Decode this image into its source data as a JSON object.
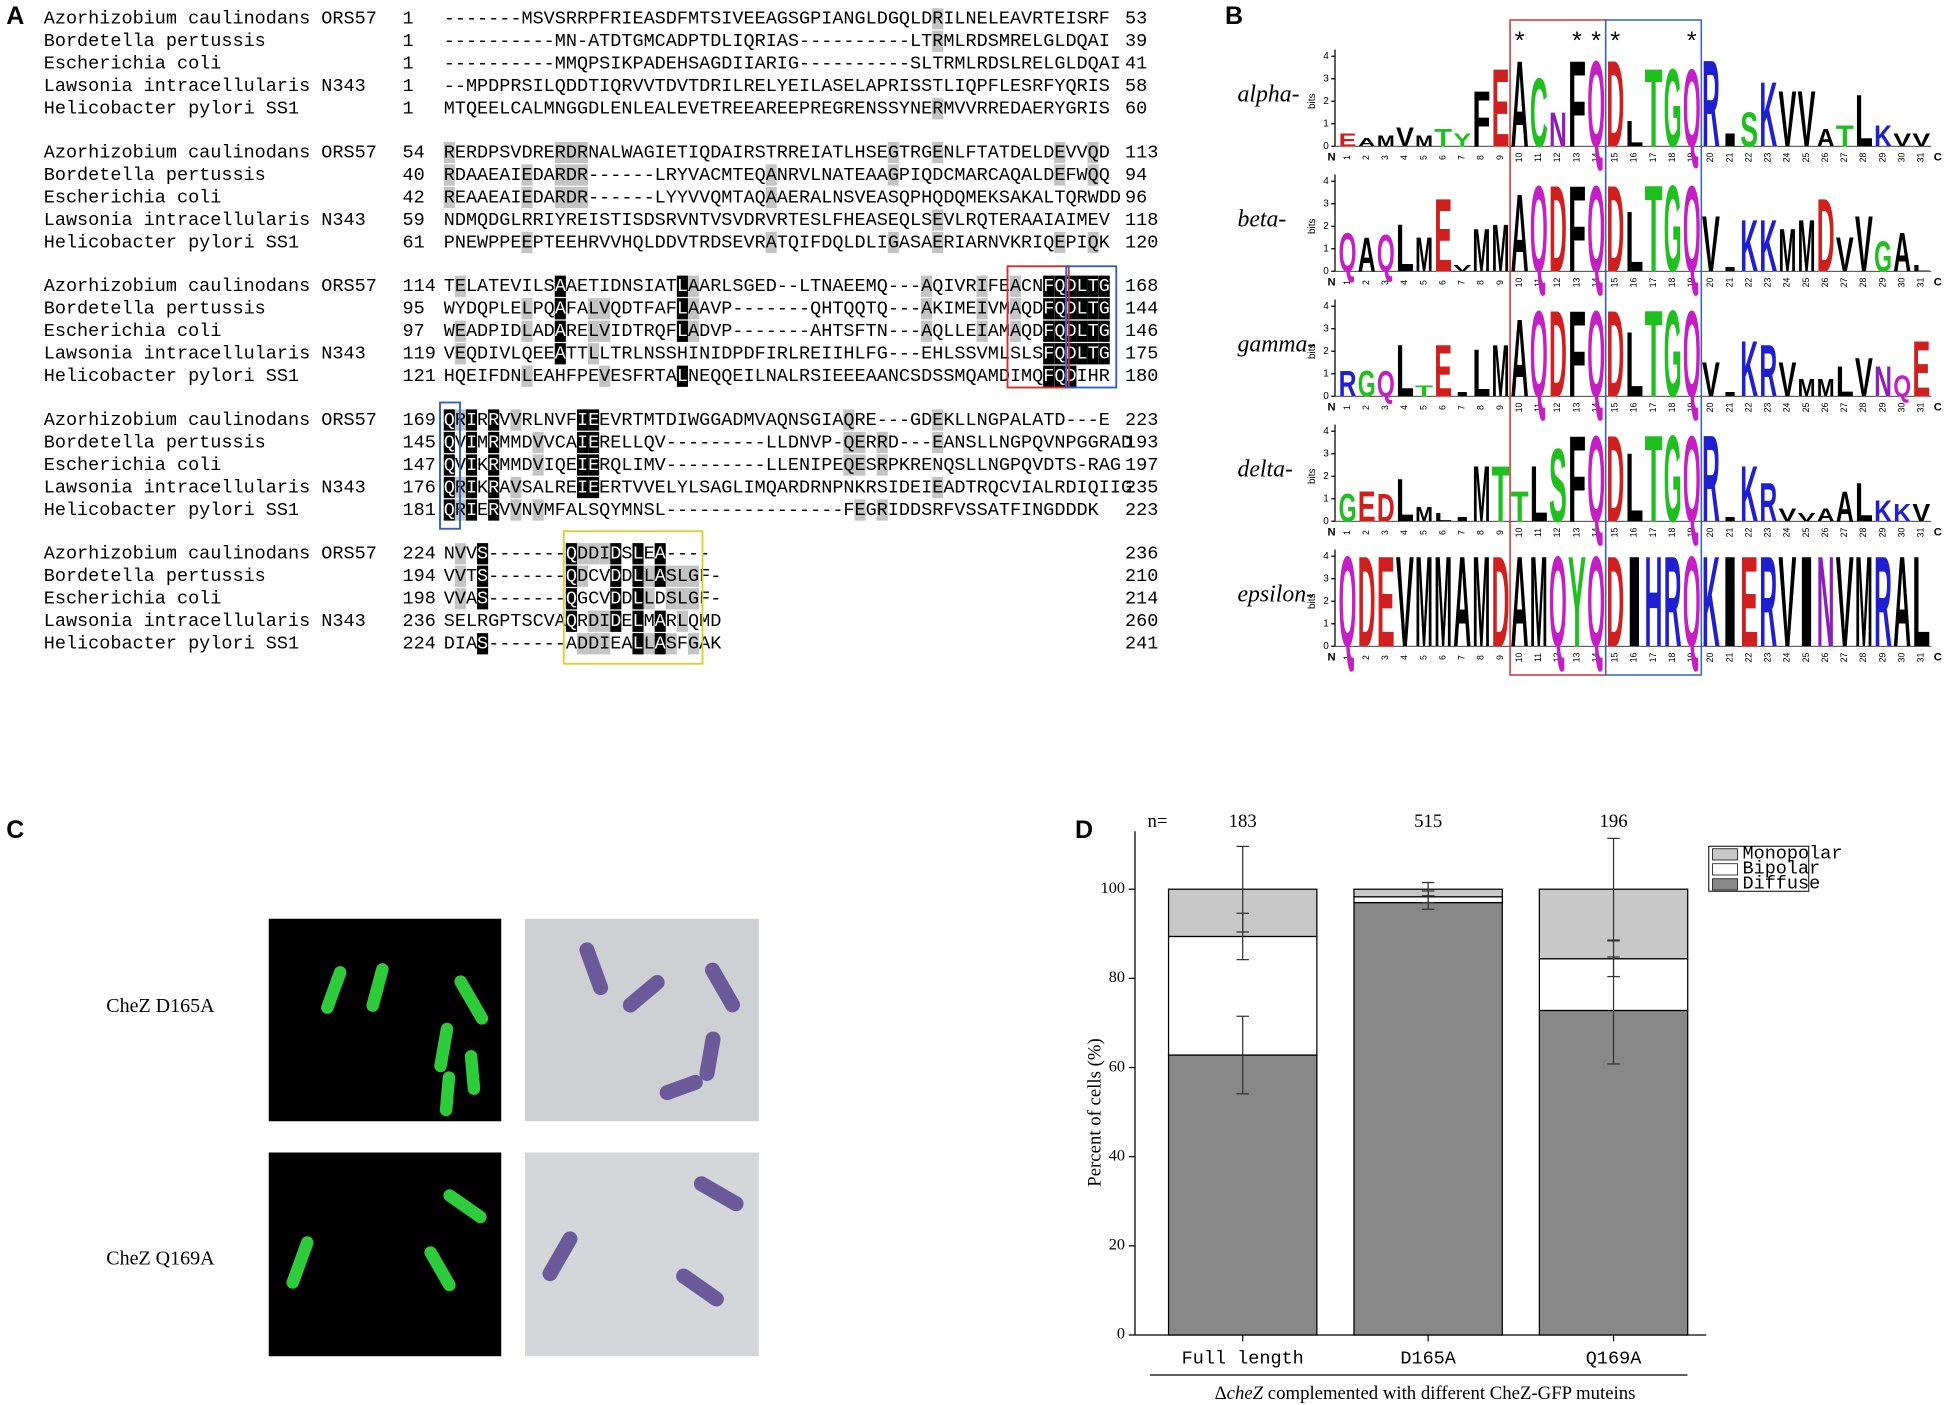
{
  "panels": {
    "a": "A",
    "b": "B",
    "c": "C",
    "d": "D"
  },
  "alignment": {
    "blocks": [
      {
        "rows": [
          {
            "name": "Azorhizobium caulinodans ORS57",
            "start": 1,
            "seq": "-------MSVSRRPFRIEASDFMTSIVEEAGSGPIANGLDGQLDRILNELEAVRTEISRF",
            "end": 53
          },
          {
            "name": "Bordetella pertussis",
            "start": 1,
            "seq": "----------MN-ATDTGMCADPTDLIQRIAS----------LTRMLRDSMRELGLDQAI",
            "end": 39
          },
          {
            "name": "Escherichia coli",
            "start": 1,
            "seq": "----------MMQPSIKPADEHSAGDIIARIG----------SLTRMLRDSLRELGLDQAI",
            "end": 41
          },
          {
            "name": "Lawsonia intracellularis N343",
            "start": 1,
            "seq": "--MPDPRSILQDDTIQRVVTDVTDRILRELYEILASELAPRISSTLIQPFLESRFYQRIS",
            "end": 58
          },
          {
            "name": "Helicobacter pylori SS1",
            "start": 1,
            "seq": "MTQEELCALMNGGDLENLEALEVETREEAREEPREGRENSSYNERMVVRREDAERYGRIS",
            "end": 60
          }
        ]
      },
      {
        "rows": [
          {
            "name": "Azorhizobium caulinodans ORS57",
            "start": 54,
            "seq": "RERDPSVDRERDRNALWAGIETIQDAIRSTRREIATLHSEGTRGENLFTATDELDEVVQD",
            "end": 113
          },
          {
            "name": "Bordetella pertussis",
            "start": 40,
            "seq": "RDAAEAIEDARDR------LRYVACMTEQANRVLNATEAAGPIQDCMARCAQALDEFWQQ",
            "end": 94
          },
          {
            "name": "Escherichia coli",
            "start": 42,
            "seq": "REAAEAIEDARDR------LYYVVQMTAQAAERALNSVEASQPHQDQMEKSAKALTQRWDD",
            "end": 96
          },
          {
            "name": "Lawsonia intracellularis N343",
            "start": 59,
            "seq": "NDMQDGLRRIYREISTISDSRVNTVSVDRVRTESLFHEASEQLSEVLRQTERAAIAIMEV",
            "end": 118
          },
          {
            "name": "Helicobacter pylori SS1",
            "start": 61,
            "seq": "PNEWPPEEPTEEHRVVHQLDDVTRDSEVRATQIFDQLDLIGASAERIARNVKRIQEPIQK",
            "end": 120
          }
        ]
      },
      {
        "rows": [
          {
            "name": "Azorhizobium caulinodans ORS57",
            "start": 114,
            "seq": "TELATEVILSAAETIDNSIATLAARLSGED--LTNAEEMQ---AQIVRIFEACNFQDLTG",
            "end": 168
          },
          {
            "name": "Bordetella pertussis",
            "start": 95,
            "seq": "WYDQPLELPQAFALVQDTFAFLAAVP-------QHTQQTQ---AKIMEIVMAQDFQDLTG",
            "end": 144
          },
          {
            "name": "Escherichia coli",
            "start": 97,
            "seq": "WEADPIDLADARELVIDTRQFLADVP-------AHTSFTN---AQLLEIAMAQDFQDLTG",
            "end": 146
          },
          {
            "name": "Lawsonia intracellularis N343",
            "start": 119,
            "seq": "VEQDIVLQEEATTLLTRLNSSHINIDPDFIRLREIIHLFG---EHLSSVMLSLSFQDLTG",
            "end": 175
          },
          {
            "name": "Helicobacter pylori SS1",
            "start": 121,
            "seq": "HQEIFDNLEAHFPEVESFRTALNEQQEILNALRSIEEEAANCSDSSMQAMDIMQFQDIHR",
            "end": 180
          }
        ]
      },
      {
        "rows": [
          {
            "name": "Azorhizobium caulinodans ORS57",
            "start": 169,
            "seq": "QRIRRVVRLNVFIEEVRTMTDIWGGADMVAQNSGIAQRE---GDEKLLNGPALATD---E",
            "end": 223
          },
          {
            "name": "Bordetella pertussis",
            "start": 145,
            "seq": "QVIMRMMDVVCAIERELLQV---------LLDNVP-QERRD---EANSLLNGPQVNPGGRAD",
            "end": 193
          },
          {
            "name": "Escherichia coli",
            "start": 147,
            "seq": "QVIKRMMDVIQEIERQLIMV---------LLENIPEQESRPKRENQSLLNGPQVDTS-RAG",
            "end": 197
          },
          {
            "name": "Lawsonia intracellularis N343",
            "start": 176,
            "seq": "QRIKRAVSALREIEERTVVELYLSAGLIMQARDRNPNKRSIDEIEADTRQCVIALRDIQIIG",
            "end": 235
          },
          {
            "name": "Helicobacter pylori SS1",
            "start": 181,
            "seq": "QRIERVVNVMFALSQYMNSL----------------FEGRIDDSRFVSSATFINGDDDK",
            "end": 223
          }
        ]
      },
      {
        "rows": [
          {
            "name": "Azorhizobium caulinodans ORS57",
            "start": 224,
            "seq": "NVVS-------QDDIDSLEA----",
            "end": 236
          },
          {
            "name": "Bordetella pertussis",
            "start": 194,
            "seq": "VVTS-------QDCVDDLLASLGF-",
            "end": 210
          },
          {
            "name": "Escherichia coli",
            "start": 198,
            "seq": "VVAS-------QGCVDDLLDSLGF-",
            "end": 214
          },
          {
            "name": "Lawsonia intracellularis N343",
            "start": 236,
            "seq": "SELRGPTSCVAQRDIDELMARLQMD",
            "end": 260
          },
          {
            "name": "Helicobacter pylori SS1",
            "start": 224,
            "seq": "DIAS-------ADDIEALLASFGAK",
            "end": 241
          }
        ]
      }
    ]
  },
  "logos": {
    "y_label": "bits",
    "ylim": [
      0,
      4.3
    ],
    "yticks": [
      0,
      1,
      2,
      3,
      4
    ],
    "positions": [
      1,
      2,
      3,
      4,
      5,
      6,
      7,
      8,
      9,
      10,
      11,
      12,
      13,
      14,
      15,
      16,
      17,
      18,
      19,
      20,
      21,
      22,
      23,
      24,
      25,
      26,
      27,
      28,
      29,
      30,
      31
    ],
    "n_end": "N",
    "c_end": "C",
    "stars": {
      "symbol": "*",
      "positions": [
        10,
        13,
        14,
        15,
        19
      ]
    },
    "colors": {
      "A": "#000000",
      "V": "#000000",
      "L": "#000000",
      "I": "#000000",
      "P": "#000000",
      "W": "#000000",
      "F": "#000000",
      "M": "#000000",
      "G": "#1fbf1f",
      "S": "#1fbf1f",
      "T": "#1fbf1f",
      "Y": "#1fbf1f",
      "C": "#1fbf1f",
      "K": "#1f1fd0",
      "R": "#1f1fd0",
      "H": "#1f1fd0",
      "D": "#d01f1f",
      "E": "#d01f1f",
      "Q": "#c41fc4",
      "N": "#8a1fb8"
    },
    "rows": [
      {
        "label": "alpha-",
        "letters": [
          "E",
          "A",
          "M",
          "V",
          "M",
          "T",
          "Y",
          "F",
          "E",
          "A",
          "C",
          "N",
          "F",
          "Q",
          "D",
          "L",
          "T",
          "G",
          "Q",
          "R",
          "I",
          "S",
          "K",
          "V",
          "V",
          "A",
          "T",
          "L",
          "K",
          "V",
          "V"
        ],
        "bits": [
          0.6,
          0.4,
          0.5,
          0.9,
          0.5,
          0.8,
          0.6,
          2.6,
          3.6,
          4,
          3.2,
          1.6,
          4,
          4,
          4,
          1.2,
          3.6,
          3.6,
          3.6,
          4,
          0.6,
          1.6,
          3,
          2.6,
          2.6,
          0.8,
          1,
          2.4,
          1,
          0.6,
          0.6
        ]
      },
      {
        "label": "beta-",
        "letters": [
          "Q",
          "A",
          "Q",
          "L",
          "M",
          "E",
          "V",
          "M",
          "M",
          "A",
          "Q",
          "D",
          "F",
          "Q",
          "D",
          "L",
          "T",
          "G",
          "Q",
          "V",
          "I",
          "K",
          "K",
          "M",
          "M",
          "D",
          "V",
          "V",
          "G",
          "A",
          "L"
        ],
        "bits": [
          1.8,
          1.6,
          1.7,
          2.2,
          1.6,
          3.4,
          0.3,
          2,
          2.2,
          3.6,
          4,
          4,
          4,
          4,
          4,
          2.8,
          4,
          4,
          4,
          2.6,
          0.2,
          2.4,
          2.4,
          2,
          2.4,
          3.4,
          1.6,
          2.6,
          1.4,
          1.8,
          0.3
        ]
      },
      {
        "label": "gamma-",
        "letters": [
          "R",
          "G",
          "Q",
          "L",
          "T",
          "E",
          "I",
          "L",
          "M",
          "A",
          "Q",
          "D",
          "F",
          "Q",
          "D",
          "L",
          "T",
          "G",
          "Q",
          "V",
          "I",
          "K",
          "R",
          "V",
          "M",
          "M",
          "L",
          "V",
          "N",
          "Q",
          "E"
        ],
        "bits": [
          1.2,
          1.2,
          1.2,
          2.4,
          0.5,
          2.4,
          0.2,
          2.2,
          2.4,
          3.6,
          4,
          4,
          4,
          4,
          4,
          3,
          4,
          4,
          4,
          1.6,
          0.2,
          2.6,
          2.4,
          1.6,
          0.8,
          0.8,
          1.4,
          1.8,
          1.4,
          1,
          2.6
        ]
      },
      {
        "label": "delta-",
        "letters": [
          "G",
          "E",
          "D",
          "L",
          "M",
          "L",
          "I",
          "M",
          "T",
          "T",
          "L",
          "S",
          "F",
          "Q",
          "D",
          "L",
          "T",
          "G",
          "Q",
          "R",
          "I",
          "K",
          "R",
          "V",
          "V",
          "A",
          "A",
          "L",
          "K",
          "K",
          "V"
        ],
        "bits": [
          1.3,
          1.4,
          1.3,
          2,
          0.7,
          0.4,
          0.2,
          2.6,
          2.6,
          1.4,
          2.6,
          3.4,
          4,
          4,
          4,
          3.2,
          4,
          4,
          4,
          4,
          0.2,
          2.6,
          1.8,
          0.6,
          0.4,
          0.6,
          1.4,
          1.8,
          1,
          0.8,
          0.8
        ]
      },
      {
        "label": "epsilon-",
        "letters": [
          "Q",
          "D",
          "E",
          "V",
          "M",
          "M",
          "A",
          "M",
          "D",
          "A",
          "M",
          "Q",
          "Y",
          "Q",
          "D",
          "I",
          "H",
          "R",
          "Q",
          "K",
          "I",
          "E",
          "R",
          "V",
          "I",
          "N",
          "V",
          "M",
          "R",
          "A",
          "L"
        ],
        "bits": [
          4.2,
          4.2,
          4.2,
          4.2,
          4.2,
          4.2,
          4.2,
          4.2,
          4.2,
          4.2,
          4.2,
          4.2,
          4.2,
          4.2,
          4.2,
          4.2,
          4.2,
          4.2,
          4.2,
          4.2,
          4.2,
          4.2,
          4.2,
          4.2,
          4.2,
          4.2,
          4.2,
          4.2,
          4.2,
          4.2,
          4.2
        ]
      }
    ]
  },
  "micrographs": {
    "rows": [
      {
        "label": "CheZ D165A"
      },
      {
        "label": "CheZ Q169A"
      }
    ]
  },
  "chart_data": {
    "type": "stacked_bar",
    "categories": [
      "Full length",
      "D165A",
      "Q169A"
    ],
    "n_label": "n=",
    "n_values": [
      183,
      515,
      196
    ],
    "y_label": "Percent of cells (%)",
    "x_label": [
      "Δ",
      "cheZ",
      "complemented with different CheZ-GFP muteins"
    ],
    "ylim": [
      0,
      113
    ],
    "yticks": [
      0,
      20,
      40,
      60,
      80,
      100
    ],
    "legend": "upper right",
    "series": [
      {
        "name": "Diffuse",
        "color": "#888888",
        "values": [
          62.8,
          97,
          72.8
        ],
        "errors": [
          8.7,
          1.5,
          12
        ]
      },
      {
        "name": "Bipolar",
        "color": "#ffffff",
        "values": [
          26.6,
          1.3,
          11.6
        ],
        "errors": [
          5.2,
          1.3,
          4
        ]
      },
      {
        "name": "Monopolar",
        "color": "#c8c8c8",
        "values": [
          10.6,
          1.7,
          15.6
        ],
        "errors": [
          9.6,
          1.5,
          11.4
        ]
      }
    ]
  }
}
